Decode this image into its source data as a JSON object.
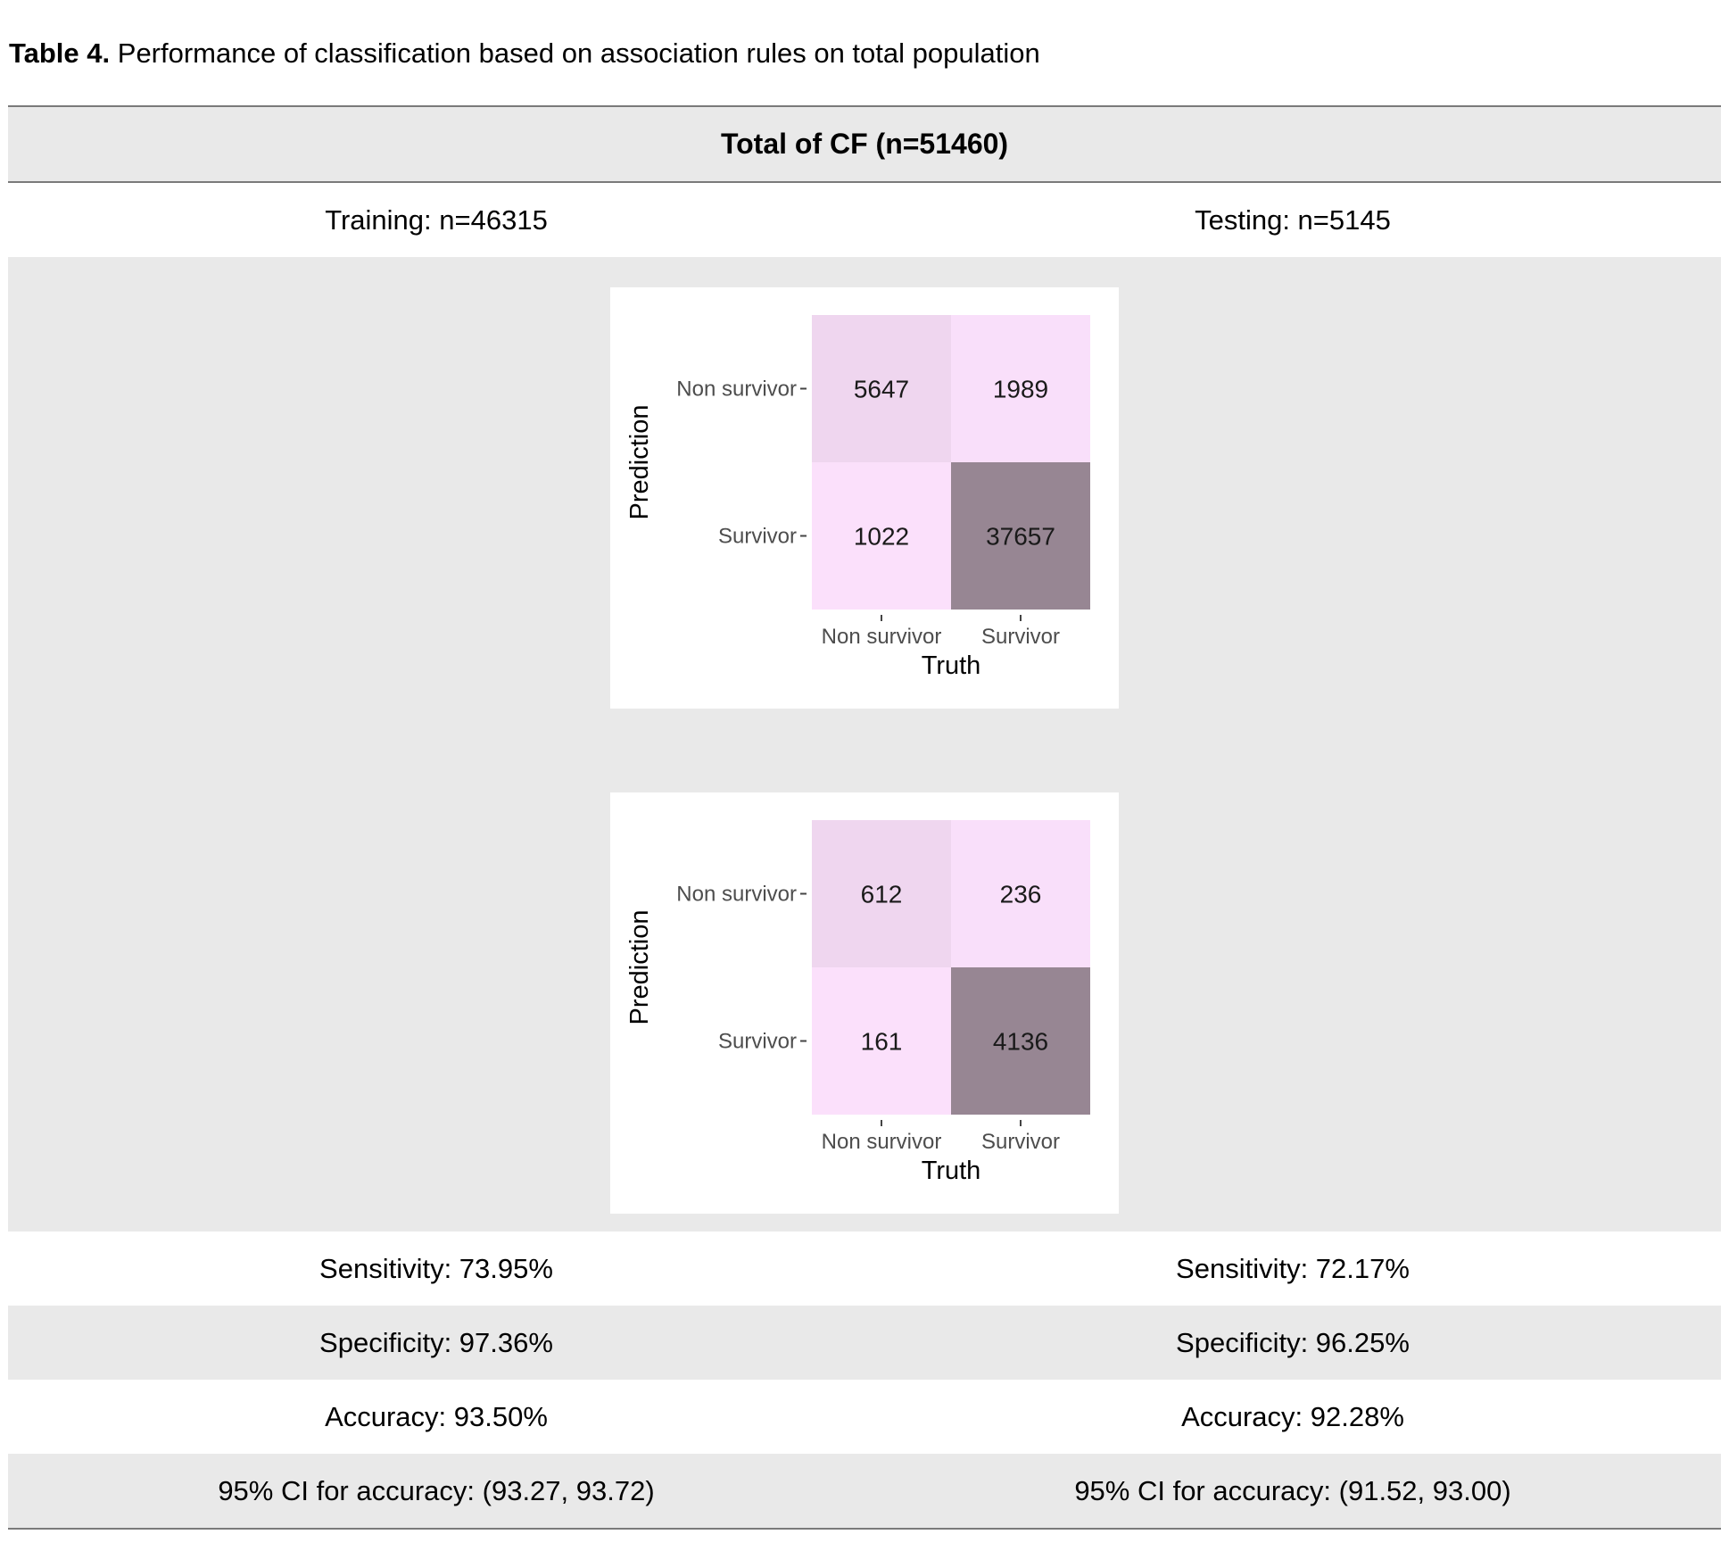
{
  "caption": {
    "label": "Table 4.",
    "text": "Performance of classification based on association rules on total population"
  },
  "table": {
    "header": "Total of  CF (n=51460)",
    "columns": [
      "Training: n=46315",
      "Testing: n=5145"
    ],
    "metrics": [
      [
        "Sensitivity: 73.95%",
        "Sensitivity: 72.17%"
      ],
      [
        "Specificity: 97.36%",
        "Specificity: 96.25%"
      ],
      [
        "Accuracy: 93.50%",
        "Accuracy: 92.28%"
      ],
      [
        "95% CI for accuracy: (93.27, 93.72)",
        "95% CI for accuracy: (91.52, 93.00)"
      ]
    ]
  },
  "chart_data": [
    {
      "type": "heatmap",
      "xlabel": "Truth",
      "ylabel": "Prediction",
      "x_categories": [
        "Non survivor",
        "Survivor"
      ],
      "y_categories": [
        "Non survivor",
        "Survivor"
      ],
      "values": [
        [
          5647,
          1989
        ],
        [
          1022,
          37657
        ]
      ],
      "colors": [
        [
          "#efd6ef",
          "#f9dffa"
        ],
        [
          "#fbe0fb",
          "#978693"
        ]
      ]
    },
    {
      "type": "heatmap",
      "xlabel": "Truth",
      "ylabel": "Prediction",
      "x_categories": [
        "Non survivor",
        "Survivor"
      ],
      "y_categories": [
        "Non survivor",
        "Survivor"
      ],
      "values": [
        [
          612,
          236
        ],
        [
          161,
          4136
        ]
      ],
      "colors": [
        [
          "#efd6ef",
          "#f9dffa"
        ],
        [
          "#fbe0fb",
          "#978693"
        ]
      ]
    }
  ]
}
